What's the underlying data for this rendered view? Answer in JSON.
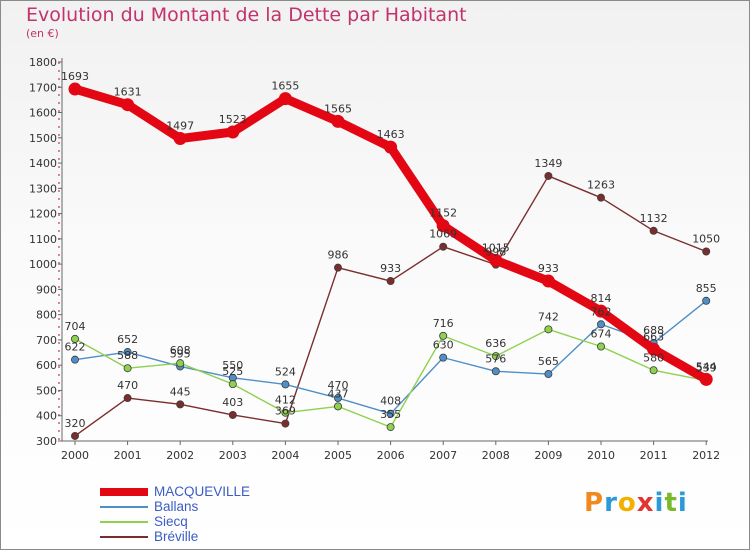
{
  "header": {
    "title": "Evolution du Montant de la Dette par Habitant",
    "unit": "(en €)"
  },
  "brand": {
    "logo_text": "Proxiti",
    "letter_colors": [
      "#f18a1e",
      "#2a9bd8",
      "#f4b000",
      "#e3342f",
      "#2a9bd8",
      "#7ab929",
      "#2a9bd8"
    ]
  },
  "colors": {
    "title": "#c2336b",
    "axis": "#666666",
    "grid_dash": "#c2336b"
  },
  "chart_data": {
    "type": "line",
    "title": "Evolution du Montant de la Dette par Habitant",
    "subtitle": "(en €)",
    "x": [
      "2000",
      "2001",
      "2002",
      "2003",
      "2004",
      "2005",
      "2006",
      "2007",
      "2008",
      "2009",
      "2010",
      "2011",
      "2012"
    ],
    "ylim": [
      300,
      1800
    ],
    "yticks": [
      300,
      400,
      500,
      600,
      700,
      800,
      900,
      1000,
      1100,
      1200,
      1300,
      1400,
      1500,
      1600,
      1700,
      1800
    ],
    "grid": false,
    "legend": "bottom-left",
    "series": [
      {
        "name": "MACQUEVILLE",
        "color": "#e30613",
        "label_color": "#3b5cc4",
        "values": [
          1693,
          1631,
          1497,
          1523,
          1655,
          1565,
          1463,
          1152,
          1015,
          933,
          814,
          663,
          544
        ],
        "labels": [
          "1693",
          "1631",
          "1497",
          "1523",
          "1655",
          "1565",
          "1463",
          "1152",
          "1015",
          "933",
          "814",
          "663",
          "544"
        ]
      },
      {
        "name": "Ballans",
        "color": "#4f8fc7",
        "label_color": "#3b5cc4",
        "values": [
          622,
          652,
          595,
          550,
          524,
          470,
          408,
          630,
          576,
          565,
          762,
          688,
          855
        ],
        "labels": [
          "622",
          "652",
          "595",
          "550",
          "524",
          "470",
          "408",
          "630",
          "576",
          "565",
          "762",
          "688",
          "855"
        ]
      },
      {
        "name": "Siecq",
        "color": "#8ed14f",
        "label_color": "#3b5cc4",
        "values": [
          704,
          588,
          608,
          525,
          412,
          437,
          355,
          716,
          636,
          742,
          674,
          580,
          539
        ],
        "labels": [
          "704",
          "588",
          "608",
          "525",
          "412",
          "437",
          "355",
          "716",
          "636",
          "742",
          "674",
          "580",
          "539"
        ]
      },
      {
        "name": "Bréville",
        "color": "#7b2d2d",
        "label_color": "#3b5cc4",
        "values": [
          320,
          470,
          445,
          403,
          369,
          986,
          933,
          1069,
          998,
          1349,
          1263,
          1132,
          1050
        ],
        "labels": [
          "320",
          "470",
          "445",
          "403",
          "369",
          "986",
          "933",
          "1069",
          "998",
          "1349",
          "1263",
          "1132",
          "1050"
        ]
      }
    ]
  }
}
